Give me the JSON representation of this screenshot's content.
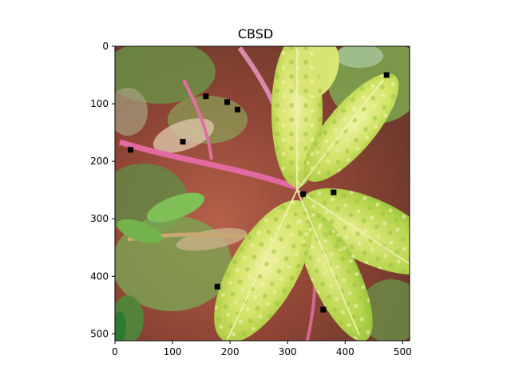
{
  "figure": {
    "title": "CBSD"
  },
  "image_axes": {
    "xlim": [
      0,
      512
    ],
    "ylim": [
      512,
      0
    ],
    "x_ticks": [
      "0",
      "100",
      "200",
      "300",
      "400",
      "500"
    ],
    "y_ticks": [
      "0",
      "100",
      "200",
      "300",
      "400",
      "500"
    ],
    "photo": "cassava leaf with mottled yellow-green CBSD symptoms over reddish soil and weeds"
  },
  "keypoints": [
    {
      "x": 27,
      "y": 180
    },
    {
      "x": 118,
      "y": 166
    },
    {
      "x": 158,
      "y": 87
    },
    {
      "x": 195,
      "y": 97
    },
    {
      "x": 213,
      "y": 110
    },
    {
      "x": 327,
      "y": 257
    },
    {
      "x": 380,
      "y": 254
    },
    {
      "x": 472,
      "y": 50
    },
    {
      "x": 178,
      "y": 418
    },
    {
      "x": 362,
      "y": 458
    }
  ],
  "colors": {
    "marker": "#000000",
    "leaf_light": "#e6f07a",
    "leaf_mid": "#b9d64a",
    "soil": "#9a4a3a",
    "stem_pink": "#e0639a"
  }
}
